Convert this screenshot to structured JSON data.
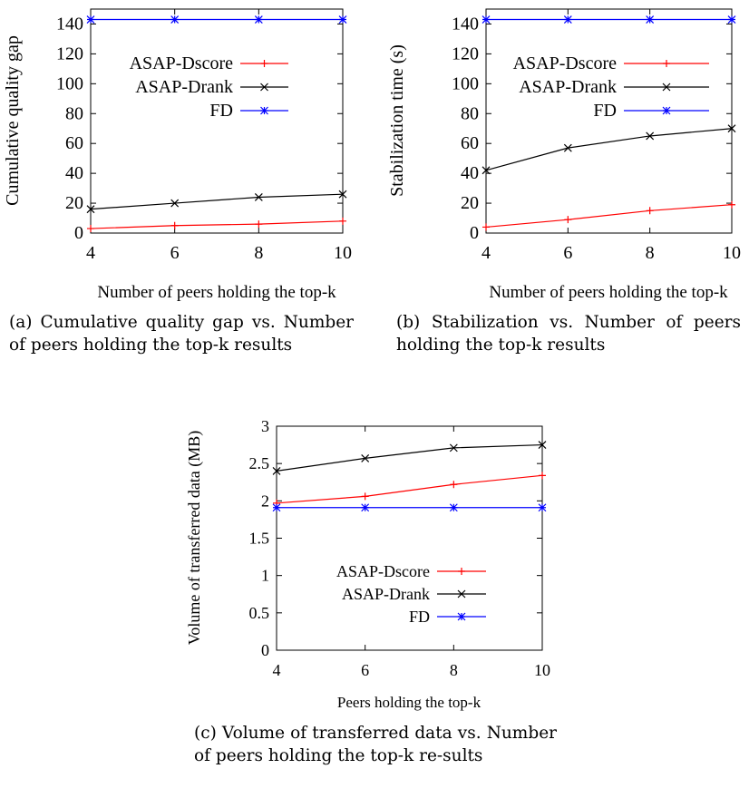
{
  "charts": [
    {
      "caption_label": "(a)",
      "caption_text": "Cumulative quality gap vs. Number of peers holding the top-k results"
    },
    {
      "caption_label": "(b)",
      "caption_text": "Stabilization vs. Number of peers holding the top-k results"
    },
    {
      "caption_label": "(c)",
      "caption_text": "Volume of transferred data vs. Number of peers holding the top-k re-sults"
    }
  ],
  "chart_data": [
    {
      "type": "line",
      "x": [
        4,
        6,
        8,
        10
      ],
      "xlabel": "Number of peers holding the top-k",
      "ylabel": "Cumulative quality gap",
      "xlim": [
        4,
        10
      ],
      "ylim": [
        0,
        150
      ],
      "xticks": [
        "4",
        "6",
        "8",
        "10"
      ],
      "yticks": [
        "0",
        "20",
        "40",
        "60",
        "80",
        "100",
        "120",
        "140"
      ],
      "ytick_values": [
        0,
        20,
        40,
        60,
        80,
        100,
        120,
        140
      ],
      "legend_position": "center-right",
      "series": [
        {
          "name": "ASAP-Dscore",
          "values": [
            3,
            5,
            6,
            8
          ],
          "color": "#ff0000",
          "marker": "plus"
        },
        {
          "name": "ASAP-Drank",
          "values": [
            16,
            20,
            24,
            26
          ],
          "color": "#000000",
          "marker": "cross"
        },
        {
          "name": "FD",
          "values": [
            143,
            143,
            143,
            143
          ],
          "color": "#0000ff",
          "marker": "star"
        }
      ]
    },
    {
      "type": "line",
      "x": [
        4,
        6,
        8,
        10
      ],
      "xlabel": "Number of peers holding the top-k",
      "ylabel": "Stabilization time (s)",
      "xlim": [
        4,
        10
      ],
      "ylim": [
        0,
        150
      ],
      "xticks": [
        "4",
        "6",
        "8",
        "10"
      ],
      "yticks": [
        "0",
        "20",
        "40",
        "60",
        "80",
        "100",
        "120",
        "140"
      ],
      "ytick_values": [
        0,
        20,
        40,
        60,
        80,
        100,
        120,
        140
      ],
      "legend_position": "center-right",
      "series": [
        {
          "name": "ASAP-Dscore",
          "values": [
            4,
            9,
            15,
            19
          ],
          "color": "#ff0000",
          "marker": "plus"
        },
        {
          "name": "ASAP-Drank",
          "values": [
            42,
            57,
            65,
            70
          ],
          "color": "#000000",
          "marker": "cross"
        },
        {
          "name": "FD",
          "values": [
            143,
            143,
            143,
            143
          ],
          "color": "#0000ff",
          "marker": "star"
        }
      ]
    },
    {
      "type": "line",
      "x": [
        4,
        6,
        8,
        10
      ],
      "xlabel": "Peers holding the top-k",
      "ylabel": "Volume of transferred data (MB)",
      "xlim": [
        4,
        10
      ],
      "ylim": [
        0,
        3
      ],
      "xticks": [
        "4",
        "6",
        "8",
        "10"
      ],
      "yticks": [
        "0",
        "0.5",
        "1",
        "1.5",
        "2",
        "2.5",
        "3"
      ],
      "ytick_values": [
        0,
        0.5,
        1,
        1.5,
        2,
        2.5,
        3
      ],
      "legend_position": "bottom-right",
      "series": [
        {
          "name": "ASAP-Dscore",
          "values": [
            1.97,
            2.06,
            2.22,
            2.34
          ],
          "color": "#ff0000",
          "marker": "plus"
        },
        {
          "name": "ASAP-Drank",
          "values": [
            2.4,
            2.57,
            2.71,
            2.75
          ],
          "color": "#000000",
          "marker": "cross"
        },
        {
          "name": "FD",
          "values": [
            1.91,
            1.91,
            1.91,
            1.91
          ],
          "color": "#0000ff",
          "marker": "star"
        }
      ]
    }
  ]
}
